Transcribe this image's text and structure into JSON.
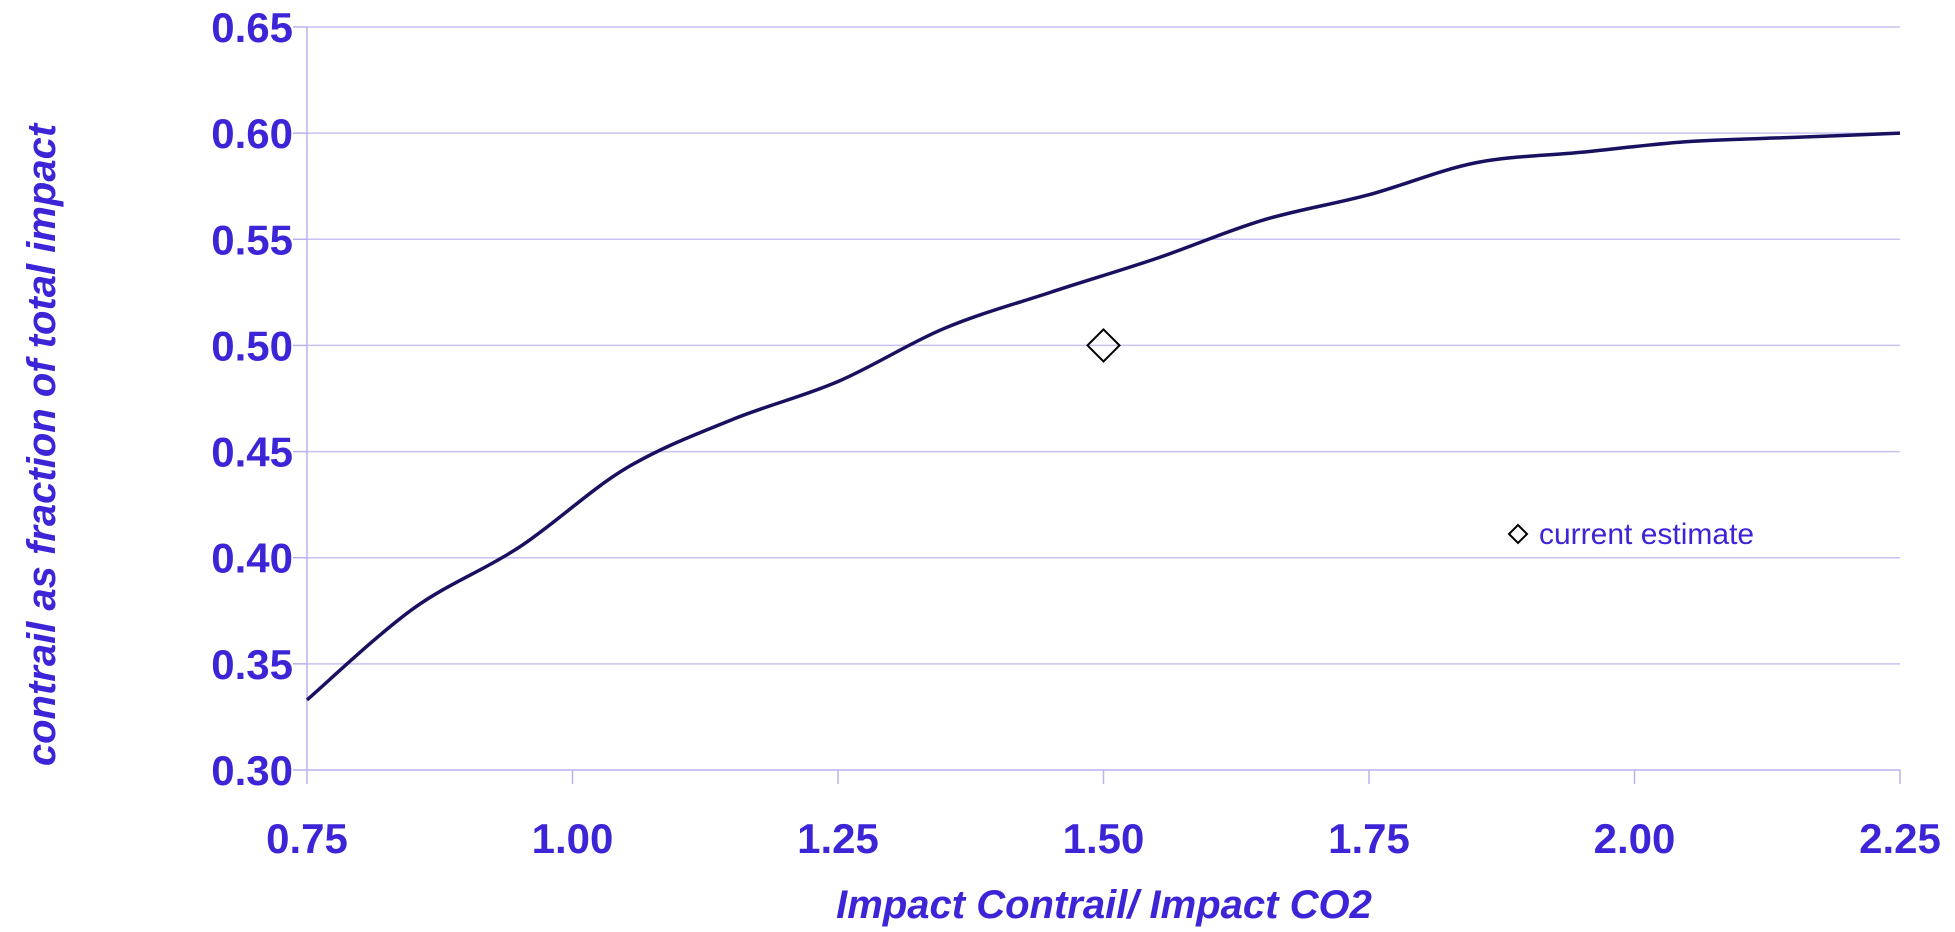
{
  "chart_data": {
    "type": "line",
    "xlabel": "Impact Contrail/ Impact CO2",
    "ylabel": "contrail as fraction of total impact",
    "xlim": [
      0.75,
      2.25
    ],
    "ylim": [
      0.3,
      0.65
    ],
    "x_ticks": [
      "0.75",
      "1.00",
      "1.25",
      "1.50",
      "1.75",
      "2.00",
      "2.25"
    ],
    "y_ticks": [
      "0.30",
      "0.35",
      "0.40",
      "0.45",
      "0.50",
      "0.55",
      "0.60",
      "0.65"
    ],
    "grid": "horizontal",
    "series": [
      {
        "x": [
          0.75,
          0.85,
          0.95,
          1.05,
          1.15,
          1.25,
          1.35,
          1.45,
          1.55,
          1.65,
          1.75,
          1.85,
          1.95,
          2.05,
          2.15,
          2.25
        ],
        "y": [
          0.333,
          0.376,
          0.405,
          0.442,
          0.465,
          0.483,
          0.508,
          0.525,
          0.541,
          0.559,
          0.571,
          0.586,
          0.591,
          0.596,
          0.598,
          0.6
        ],
        "color": "#1a1060"
      },
      {
        "name": "current estimate",
        "marker": "diamond",
        "x": [
          1.5
        ],
        "y": [
          0.5
        ],
        "color": "#000000"
      }
    ],
    "legend": {
      "position": "right-center",
      "label": "current estimate"
    },
    "colors": {
      "text": "#3b25d6",
      "grid": "#c7c2f2",
      "axis": "#b8b2ee",
      "line": "#1a1060"
    }
  }
}
